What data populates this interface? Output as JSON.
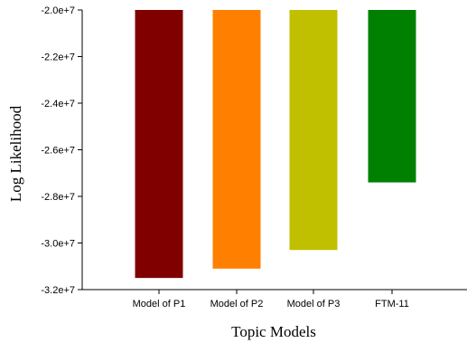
{
  "chart_data": {
    "type": "bar",
    "title": "",
    "xlabel": "Topic Models",
    "ylabel": "Log Likelihood",
    "categories": [
      "Model of P1",
      "Model of P2",
      "Model of P3",
      "FTM-11"
    ],
    "values": [
      -31500000,
      -31100000,
      -30300000,
      -27400000
    ],
    "baseline": -20000000,
    "ylim": [
      -32000000,
      -20000000
    ],
    "yticks": [
      -20000000,
      -22000000,
      -24000000,
      -26000000,
      -28000000,
      -30000000,
      -32000000
    ],
    "ytick_labels": [
      "-2.0e+7",
      "-2.2e+7",
      "-2.4e+7",
      "-2.6e+7",
      "-2.8e+7",
      "-3.0e+7",
      "-3.2e+7"
    ],
    "colors": [
      "#800000",
      "#ff8000",
      "#c0c000",
      "#008000"
    ],
    "grid": false,
    "legend": "none"
  }
}
